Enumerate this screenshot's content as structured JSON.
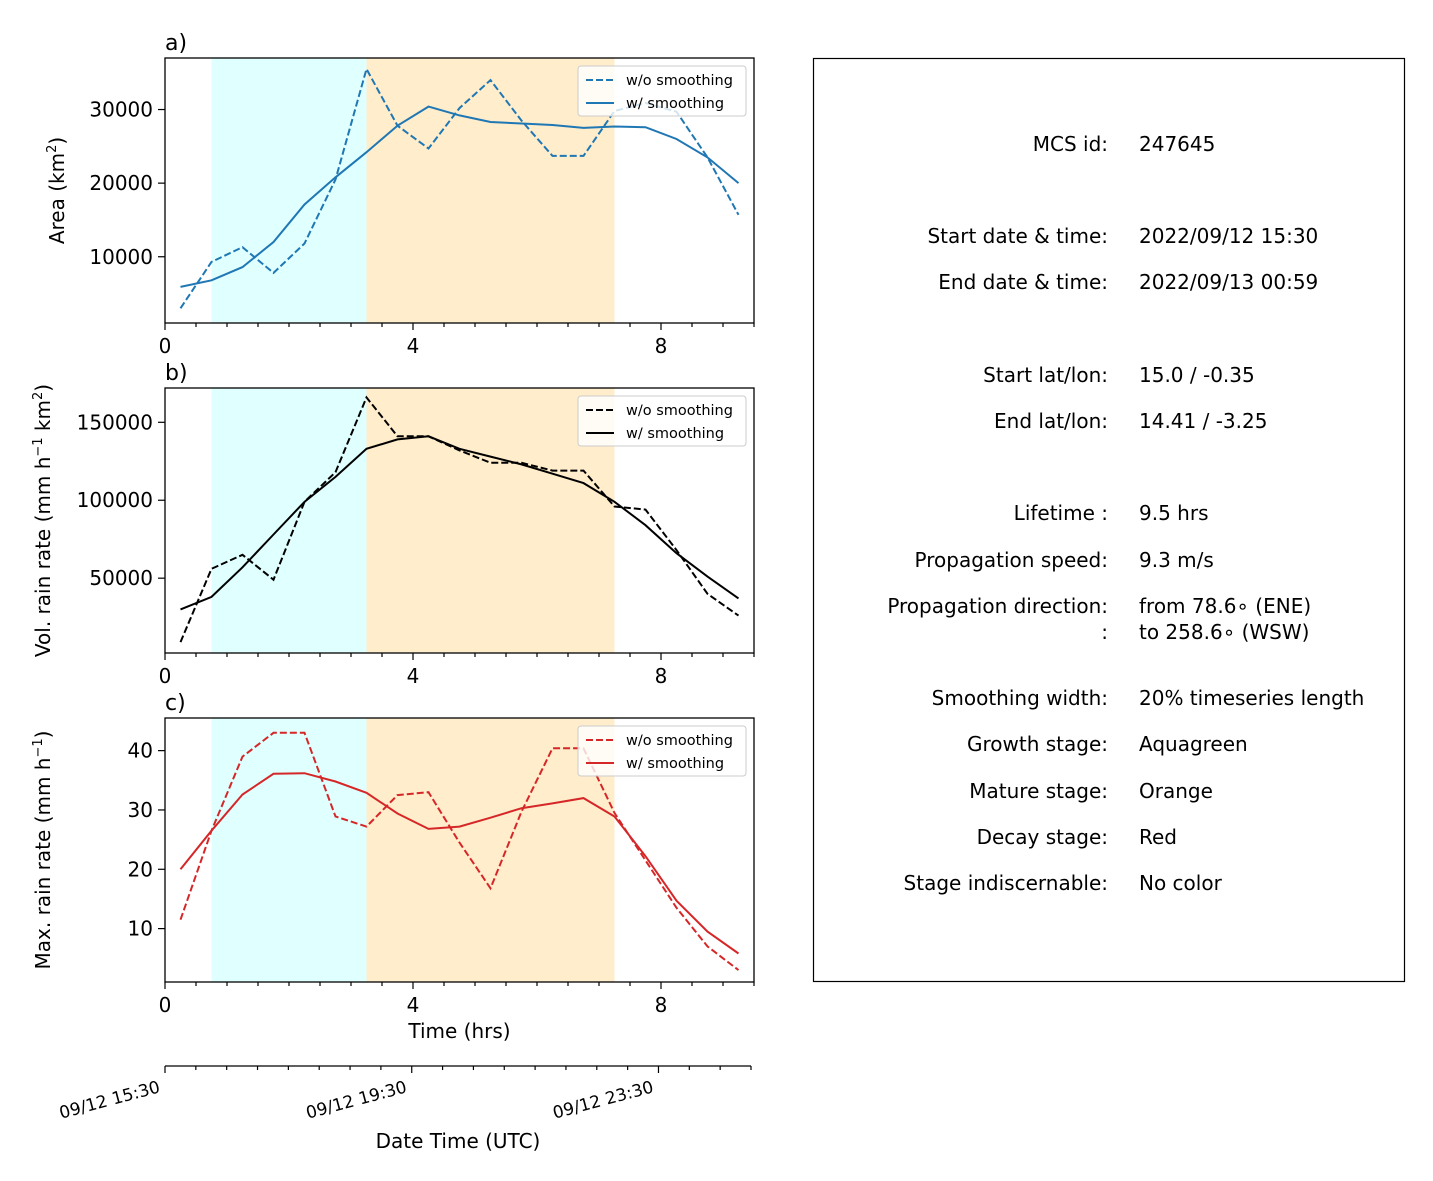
{
  "chart_data": [
    {
      "type": "line",
      "panel_label": "a)",
      "ylabel_main": "Area  (km",
      "ylabel_sup": "2",
      "ylabel_close": ")",
      "xlim": [
        0,
        9.5
      ],
      "ylim": [
        1000,
        37000
      ],
      "xticks": [
        0,
        4,
        8
      ],
      "yticks": [
        10000,
        20000,
        30000
      ],
      "stages": [
        {
          "name": "Growth",
          "from": 0.75,
          "to": 3.25,
          "color": "#e0ffff"
        },
        {
          "name": "Mature",
          "from": 3.25,
          "to": 7.25,
          "color": "#ffedcc"
        }
      ],
      "color": "#1f77b4",
      "x": [
        0.25,
        0.75,
        1.25,
        1.75,
        2.25,
        2.75,
        3.25,
        3.75,
        4.25,
        4.75,
        5.25,
        5.75,
        6.25,
        6.75,
        7.25,
        7.75,
        8.25,
        8.75,
        9.25
      ],
      "series": [
        {
          "name": "w/o smoothing",
          "dashed": true,
          "values": [
            3000,
            9300,
            11300,
            7800,
            11800,
            20500,
            35500,
            27800,
            24700,
            30200,
            34000,
            28500,
            23700,
            23700,
            29800,
            30900,
            29700,
            23500,
            15700
          ]
        },
        {
          "name": "w/ smoothing",
          "dashed": false,
          "values": [
            5900,
            6800,
            8600,
            12000,
            17100,
            20800,
            24200,
            27800,
            30400,
            29200,
            28300,
            28100,
            27900,
            27500,
            27700,
            27600,
            26000,
            23500,
            20000
          ]
        }
      ]
    },
    {
      "type": "line",
      "panel_label": "b)",
      "ylabel_main": "Vol. rain rate (mm h",
      "ylabel_sup": "−1",
      "ylabel_mid": " km",
      "ylabel_sup2": "2",
      "ylabel_close": ")",
      "xlim": [
        0,
        9.5
      ],
      "ylim": [
        2000,
        172000
      ],
      "xticks": [
        0,
        4,
        8
      ],
      "yticks": [
        50000,
        100000,
        150000
      ],
      "stages": [
        {
          "name": "Growth",
          "from": 0.75,
          "to": 3.25,
          "color": "#e0ffff"
        },
        {
          "name": "Mature",
          "from": 3.25,
          "to": 7.25,
          "color": "#ffedcc"
        }
      ],
      "color": "#000000",
      "x": [
        0.25,
        0.75,
        1.25,
        1.75,
        2.25,
        2.75,
        3.25,
        3.75,
        4.25,
        4.75,
        5.25,
        5.75,
        6.25,
        6.75,
        7.25,
        7.75,
        8.25,
        8.75,
        9.25
      ],
      "series": [
        {
          "name": "w/o smoothing",
          "dashed": true,
          "values": [
            9000,
            56000,
            65000,
            49000,
            99000,
            118000,
            166000,
            141000,
            141000,
            132000,
            124000,
            124000,
            119000,
            119000,
            96000,
            94000,
            68000,
            40000,
            26000
          ]
        },
        {
          "name": "w/ smoothing",
          "dashed": false,
          "values": [
            30000,
            38000,
            57000,
            78000,
            99000,
            115000,
            133000,
            139000,
            141000,
            133000,
            128000,
            123000,
            117000,
            111000,
            99000,
            84000,
            66000,
            51000,
            37000
          ]
        }
      ]
    },
    {
      "type": "line",
      "panel_label": "c)",
      "ylabel_main": "Max. rain rate  (mm h",
      "ylabel_sup": "−1",
      "ylabel_close": ")",
      "xlabel": "Time (hrs)",
      "xlim": [
        0,
        9.5
      ],
      "ylim": [
        1,
        45.5
      ],
      "xticks": [
        0,
        4,
        8
      ],
      "yticks": [
        10,
        20,
        30,
        40
      ],
      "stages": [
        {
          "name": "Growth",
          "from": 0.75,
          "to": 3.25,
          "color": "#e0ffff"
        },
        {
          "name": "Mature",
          "from": 3.25,
          "to": 7.25,
          "color": "#ffedcc"
        }
      ],
      "color": "#d62728",
      "x": [
        0.25,
        0.75,
        1.25,
        1.75,
        2.25,
        2.75,
        3.25,
        3.75,
        4.25,
        4.75,
        5.25,
        5.75,
        6.25,
        6.75,
        7.25,
        7.75,
        8.25,
        8.75,
        9.25
      ],
      "series": [
        {
          "name": "w/o smoothing",
          "dashed": true,
          "values": [
            11.5,
            26.5,
            39.0,
            43.0,
            43.0,
            28.9,
            27.2,
            32.5,
            33.0,
            24.5,
            16.8,
            29.7,
            40.4,
            40.4,
            29.5,
            21.5,
            13.5,
            7.0,
            3.0
          ]
        },
        {
          "name": "w/ smoothing",
          "dashed": false,
          "values": [
            20.0,
            26.5,
            32.6,
            36.1,
            36.2,
            34.8,
            32.9,
            29.4,
            26.8,
            27.2,
            28.7,
            30.3,
            31.1,
            32.0,
            28.9,
            22.2,
            14.7,
            9.5,
            5.8
          ]
        }
      ]
    },
    {
      "type": "axis",
      "xlabel": "Date Time (UTC)",
      "xlim": [
        0,
        9.5
      ],
      "ticks": [
        {
          "x": 0,
          "label": "09/12 15:30"
        },
        {
          "x": 4,
          "label": "09/12 19:30"
        },
        {
          "x": 8,
          "label": "09/12 23:30"
        }
      ]
    }
  ],
  "info": [
    {
      "label": "MCS id:",
      "value": "247645"
    },
    {
      "label": "Start date & time:",
      "value": "2022/09/12 15:30"
    },
    {
      "label": "End date & time:",
      "value": "2022/09/13 00:59"
    },
    {
      "label": "Start lat/lon:",
      "value": "15.0 / -0.35"
    },
    {
      "label": "End lat/lon:",
      "value": "14.41 / -3.25"
    },
    {
      "label": "Lifetime :",
      "value": "9.5 hrs"
    },
    {
      "label": "Propagation speed:",
      "value": "9.3 m/s"
    },
    {
      "label": "Propagation direction:",
      "value": "from  78.6∘ (ENE)"
    },
    {
      "label": ":",
      "value": "to   258.6∘ (WSW)"
    },
    {
      "label": "Smoothing width:",
      "value": "20% timeseries length"
    },
    {
      "label": "Growth stage:",
      "value": "Aquagreen"
    },
    {
      "label": "Mature stage:",
      "value": "Orange"
    },
    {
      "label": "Decay stage:",
      "value": "Red"
    },
    {
      "label": "Stage indiscernable:",
      "value": "No color"
    }
  ]
}
